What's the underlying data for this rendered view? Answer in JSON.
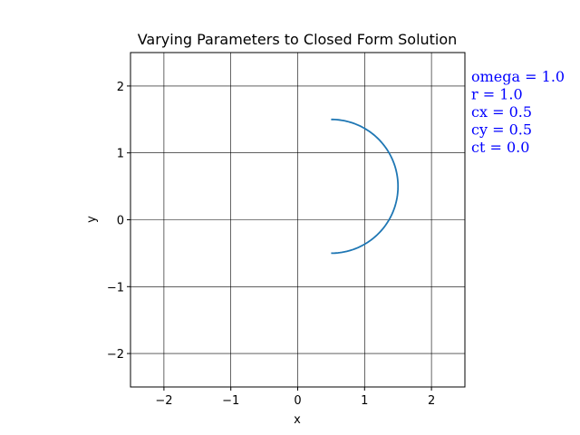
{
  "chart_data": {
    "type": "line",
    "title": "Varying Parameters to Closed Form Solution",
    "xlabel": "x",
    "ylabel": "y",
    "xlim": [
      -2.5,
      2.5
    ],
    "ylim": [
      -2.5,
      2.5
    ],
    "xticks": [
      -2,
      -1,
      0,
      1,
      2
    ],
    "yticks": [
      -2,
      -1,
      0,
      1,
      2
    ],
    "xtick_labels": [
      "−2",
      "−1",
      "0",
      "1",
      "2"
    ],
    "ytick_labels": [
      "−2",
      "−1",
      "0",
      "1",
      "2"
    ],
    "grid": true,
    "series": [
      {
        "color": "#1f77b4",
        "curve": {
          "kind": "circular-arc",
          "center": [
            0.5,
            0.5
          ],
          "radius": 1.0,
          "start_angle_deg": -90,
          "end_angle_deg": 90
        }
      }
    ],
    "annotations": [
      "omega = 1.0",
      "r = 1.0",
      "cx = 0.5",
      "cy = 0.5",
      "ct = 0.0"
    ],
    "annotation_color": "#0000ff"
  }
}
